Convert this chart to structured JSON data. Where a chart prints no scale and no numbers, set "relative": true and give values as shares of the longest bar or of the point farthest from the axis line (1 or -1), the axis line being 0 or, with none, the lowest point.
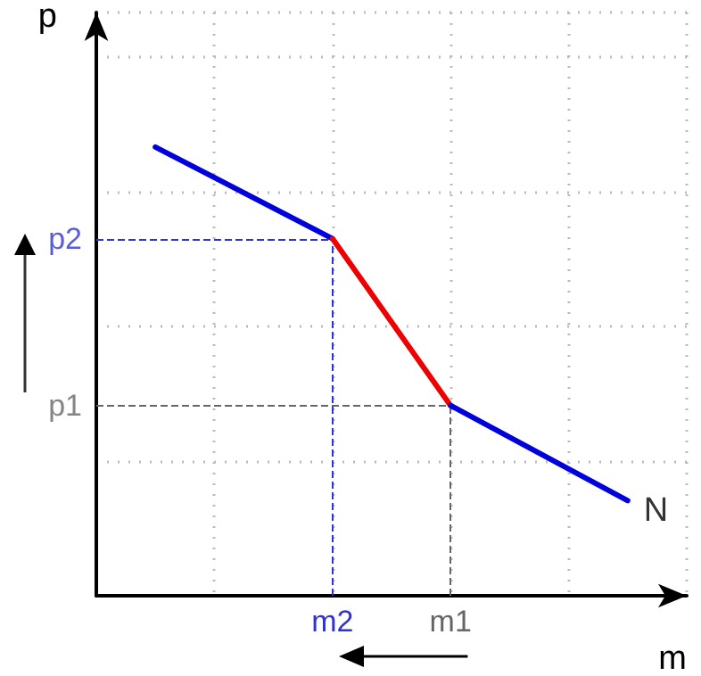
{
  "chart_data": {
    "type": "line",
    "relative": true,
    "xlabel": "m",
    "ylabel": "p",
    "categories": [
      null,
      null,
      null,
      null,
      "m2",
      null,
      "m1",
      null,
      null,
      null,
      null
    ],
    "series": [
      {
        "color": "#0000dd",
        "values": [
          null,
          1,
          null,
          null,
          0.796,
          null,
          null,
          null,
          null,
          null,
          null
        ]
      },
      {
        "color": "#ee0000",
        "values": [
          null,
          null,
          null,
          null,
          0.796,
          null,
          0.424,
          null,
          null,
          null,
          null
        ]
      },
      {
        "color": "#0000dd",
        "values": [
          null,
          null,
          null,
          null,
          null,
          null,
          0.424,
          null,
          null,
          0.212,
          null
        ]
      }
    ],
    "ref_lines": [
      {
        "axis": "x",
        "value": "m2",
        "label": null,
        "color": "#3333cc",
        "line_style": "dashed"
      },
      {
        "axis": "y",
        "value": 0.796,
        "label": "p2",
        "color": "#3333cc",
        "line_style": "dashed"
      },
      {
        "axis": "x",
        "value": "m1",
        "label": null,
        "color": "#666666",
        "line_style": "dashed"
      },
      {
        "axis": "y",
        "value": 0.424,
        "label": "p1",
        "color": "#666666",
        "line_style": "dashed"
      }
    ],
    "annotations": [
      "N"
    ],
    "grid": true,
    "marker": "none",
    "line_style": "solid"
  }
}
